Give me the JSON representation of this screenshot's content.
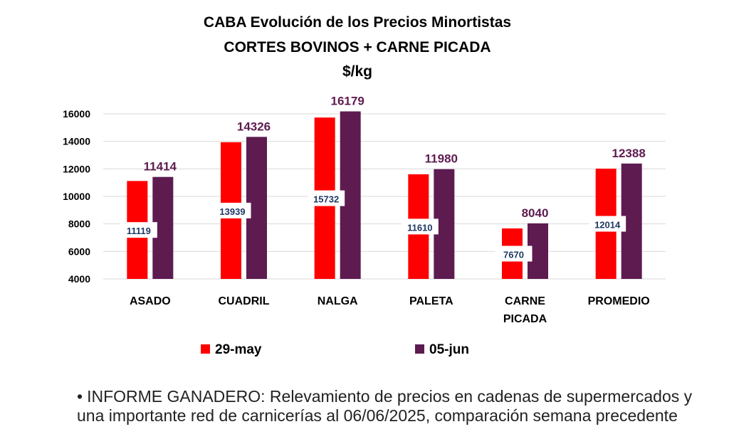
{
  "title": {
    "line1": "CABA Evolución de los Precios Minortistas",
    "line2": "CORTES BOVINOS + CARNE PICADA",
    "line3": "$/kg"
  },
  "colors": {
    "series_a": "#ff0000",
    "series_b": "#5e1b50"
  },
  "chart_data": {
    "type": "bar",
    "title": "CABA Evolución de los Precios Minortistas CORTES BOVINOS + CARNE PICADA",
    "ylabel": "$/kg",
    "xlabel": "",
    "categories": [
      [
        "ASADO"
      ],
      [
        "CUADRIL"
      ],
      [
        "NALGA"
      ],
      [
        "PALETA"
      ],
      [
        "CARNE",
        "PICADA"
      ],
      [
        "PROMEDIO"
      ]
    ],
    "series": [
      {
        "name": "29-may",
        "values": [
          11119,
          13939,
          15732,
          11610,
          7670,
          12014
        ]
      },
      {
        "name": "05-jun",
        "values": [
          11414,
          14326,
          16179,
          11980,
          8040,
          12388
        ]
      }
    ],
    "ylim": [
      4000,
      16000
    ],
    "yticks": [
      "4000",
      "6000",
      "8000",
      "10000",
      "12000",
      "14000",
      "16000"
    ],
    "grid": true,
    "legend": "bottom"
  },
  "footnote": {
    "bullet": "•",
    "text": "INFORME GANADERO: Relevamiento de precios en cadenas de supermercados y una importante red de carnicerías al 06/06/2025, comparación semana precedente"
  }
}
